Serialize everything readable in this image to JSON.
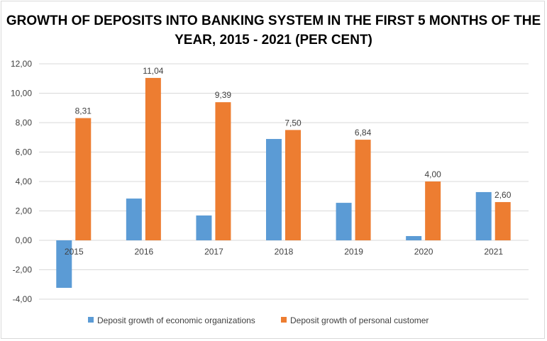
{
  "chart_data": {
    "type": "bar",
    "title": "GROWTH OF DEPOSITS INTO BANKING SYSTEM IN THE FIRST 5 MONTHS OF THE YEAR, 2015 - 2021 (PER CENT)",
    "categories": [
      "2015",
      "2016",
      "2017",
      "2018",
      "2019",
      "2020",
      "2021"
    ],
    "series": [
      {
        "name": "Deposit growth of economic organizations",
        "color": "#5b9bd5",
        "values": [
          -3.23,
          2.84,
          1.69,
          6.89,
          2.55,
          0.29,
          3.28
        ]
      },
      {
        "name": "Deposit growth of personal customer",
        "color": "#ed7d31",
        "values": [
          8.31,
          11.04,
          9.39,
          7.5,
          6.84,
          4.0,
          2.6
        ],
        "labels": [
          "8,31",
          "11,04",
          "9,39",
          "7,50",
          "6,84",
          "4,00",
          "2,60"
        ]
      }
    ],
    "yticks": [
      "12,00",
      "10,00",
      "8,00",
      "6,00",
      "4,00",
      "2,00",
      "0,00",
      "-2,00",
      "-4,00"
    ],
    "ylim": [
      -4,
      12
    ],
    "grid": true,
    "legend": "bottom"
  }
}
